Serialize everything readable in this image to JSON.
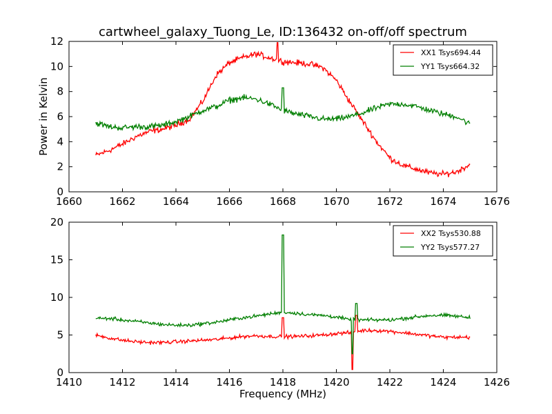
{
  "figure": {
    "title": "cartwheel_galaxy_Tuong_Le, ID:136432 on-off/off spectrum"
  },
  "chart_data": [
    {
      "type": "line",
      "title": "cartwheel_galaxy_Tuong_Le, ID:136432 on-off/off spectrum",
      "xlabel": "",
      "ylabel": "Power in Kelvin",
      "xlim": [
        1660,
        1676
      ],
      "ylim": [
        0,
        12
      ],
      "xticks": [
        "1660",
        "1662",
        "1664",
        "1666",
        "1668",
        "1670",
        "1672",
        "1674",
        "1676"
      ],
      "yticks": [
        "0",
        "2",
        "4",
        "6",
        "8",
        "10",
        "12"
      ],
      "legend_position": "top-right",
      "x": [
        1661,
        1661.5,
        1662,
        1662.5,
        1663,
        1663.5,
        1664,
        1664.5,
        1665,
        1665.5,
        1666,
        1666.5,
        1667,
        1667.5,
        1668,
        1668.5,
        1669,
        1669.5,
        1670,
        1670.5,
        1671,
        1671.5,
        1672,
        1672.5,
        1673,
        1673.5,
        1674,
        1674.5,
        1675
      ],
      "series": [
        {
          "name": "XX1 Tsys694.44",
          "color": "#ff0000",
          "values": [
            2.9,
            3.3,
            3.8,
            4.4,
            4.8,
            5.0,
            5.3,
            5.8,
            7.2,
            9.3,
            10.3,
            10.7,
            11.0,
            10.7,
            10.4,
            10.3,
            10.2,
            9.9,
            8.9,
            7.2,
            5.6,
            4.0,
            2.7,
            2.1,
            1.8,
            1.5,
            1.4,
            1.6,
            2.2
          ]
        },
        {
          "name": "YY1 Tsys664.32",
          "color": "#007f00",
          "values": [
            5.5,
            5.2,
            5.1,
            5.2,
            5.2,
            5.3,
            5.6,
            6.0,
            6.5,
            6.8,
            7.3,
            7.5,
            7.4,
            7.0,
            6.5,
            6.2,
            6.0,
            5.8,
            5.8,
            6.0,
            6.3,
            6.7,
            7.0,
            7.0,
            6.8,
            6.5,
            6.2,
            6.0,
            5.4
          ]
        }
      ],
      "spikes": [
        {
          "series": "XX1 Tsys694.44",
          "x": 1667.8,
          "y": 11.9
        },
        {
          "series": "YY1 Tsys664.32",
          "x": 1668.0,
          "y": 8.3
        }
      ]
    },
    {
      "type": "line",
      "title": "",
      "xlabel": "Frequency (MHz)",
      "ylabel": "",
      "xlim": [
        1410,
        1426
      ],
      "ylim": [
        0,
        20
      ],
      "xticks": [
        "1410",
        "1412",
        "1414",
        "1416",
        "1418",
        "1420",
        "1422",
        "1424",
        "1426"
      ],
      "yticks": [
        "0",
        "5",
        "10",
        "15",
        "20"
      ],
      "legend_position": "top-right",
      "x": [
        1411,
        1411.5,
        1412,
        1412.5,
        1413,
        1413.5,
        1414,
        1414.5,
        1415,
        1415.5,
        1416,
        1416.5,
        1417,
        1417.5,
        1418,
        1418.5,
        1419,
        1419.5,
        1420,
        1420.5,
        1421,
        1421.5,
        1422,
        1422.5,
        1423,
        1423.5,
        1424,
        1424.5,
        1425
      ],
      "series": [
        {
          "name": "XX2 Tsys530.88",
          "color": "#ff0000",
          "values": [
            5.0,
            4.6,
            4.3,
            4.1,
            4.0,
            4.0,
            4.1,
            4.2,
            4.3,
            4.4,
            4.6,
            4.8,
            4.9,
            4.8,
            4.8,
            4.8,
            4.9,
            5.0,
            5.2,
            5.3,
            5.6,
            5.6,
            5.5,
            5.3,
            5.1,
            4.9,
            4.7,
            4.7,
            4.7
          ]
        },
        {
          "name": "YY2 Tsys577.27",
          "color": "#007f00",
          "values": [
            7.2,
            7.2,
            7.0,
            6.8,
            6.6,
            6.4,
            6.3,
            6.3,
            6.5,
            6.7,
            7.0,
            7.3,
            7.5,
            7.8,
            8.0,
            7.9,
            7.7,
            7.6,
            7.4,
            7.0,
            7.0,
            7.0,
            7.0,
            7.2,
            7.4,
            7.6,
            7.6,
            7.5,
            7.3
          ]
        }
      ],
      "spikes": [
        {
          "series": "YY2 Tsys577.27",
          "x": 1418.0,
          "y": 18.3
        },
        {
          "series": "XX2 Tsys530.88",
          "x": 1418.0,
          "y": 7.3
        },
        {
          "series": "XX2 Tsys530.88",
          "x": 1420.6,
          "y": 0.4
        },
        {
          "series": "YY2 Tsys577.27",
          "x": 1420.6,
          "y": 2.5
        },
        {
          "series": "YY2 Tsys577.27",
          "x": 1420.75,
          "y": 9.2
        },
        {
          "series": "XX2 Tsys530.88",
          "x": 1420.75,
          "y": 7.6
        }
      ]
    }
  ]
}
